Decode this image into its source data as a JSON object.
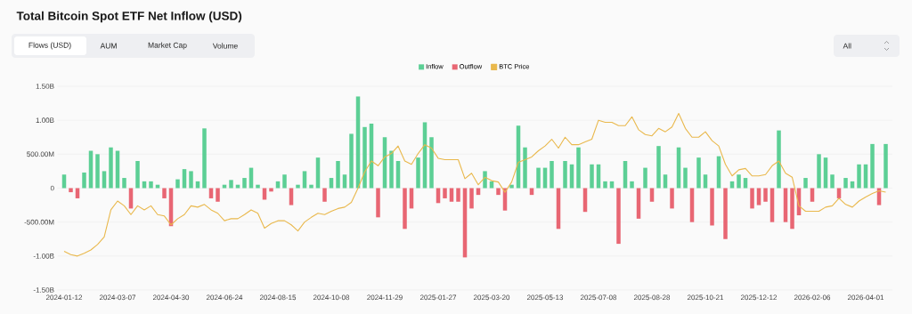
{
  "chart_data": {
    "type": "bar",
    "title": "Total Bitcoin Spot ETF Net Inflow (USD)",
    "annotations": [
      "Flows (USD)",
      "AUM",
      "Market Cap",
      "Volume",
      "All"
    ],
    "categories": [
      "2024-01-12",
      null,
      null,
      null,
      null,
      null,
      null,
      null,
      "2024-03-07",
      null,
      null,
      null,
      null,
      null,
      null,
      null,
      "2024-04-30",
      null,
      null,
      null,
      null,
      null,
      null,
      null,
      "2024-06-24",
      null,
      null,
      null,
      null,
      null,
      null,
      null,
      "2024-08-15",
      null,
      null,
      null,
      null,
      null,
      null,
      null,
      "2024-10-08",
      null,
      null,
      null,
      null,
      null,
      null,
      null,
      "2024-11-29",
      null,
      null,
      null,
      null,
      null,
      null,
      null,
      "2025-01-27",
      null,
      null,
      null,
      null,
      null,
      null,
      null,
      "2025-03-20",
      null,
      null,
      null,
      null,
      null,
      null,
      null,
      "2025-05-13",
      null,
      null,
      null,
      null,
      null,
      null,
      null,
      "2025-07-08",
      null,
      null,
      null,
      null,
      null,
      null,
      null,
      "2025-08-28",
      null,
      null,
      null,
      null,
      null,
      null,
      null,
      "2025-10-21",
      null,
      null,
      null,
      null,
      null,
      null,
      null,
      "2025-12-12",
      null,
      null,
      null,
      null,
      null,
      null,
      null,
      "2026-02-06",
      null,
      null,
      null,
      null,
      null,
      null,
      null,
      "2026-04-01",
      null,
      null,
      null
    ],
    "series": [
      {
        "name": "Inflow",
        "color": "#5ccf95",
        "values": [
          200000000.0,
          null,
          null,
          230000000.0,
          550000000.0,
          500000000.0,
          250000000.0,
          600000000.0,
          550000000.0,
          150000000.0,
          null,
          400000000.0,
          100000000.0,
          100000000.0,
          50000000.0,
          null,
          null,
          130000000.0,
          280000000.0,
          250000000.0,
          100000000.0,
          880000000.0,
          null,
          null,
          50000000.0,
          120000000.0,
          50000000.0,
          150000000.0,
          300000000.0,
          50000000.0,
          null,
          null,
          100000000.0,
          200000000.0,
          null,
          50000000.0,
          250000000.0,
          50000000.0,
          450000000.0,
          null,
          150000000.0,
          400000000.0,
          200000000.0,
          800000000.0,
          1350000000.0,
          900000000.0,
          950000000.0,
          null,
          750000000.0,
          550000000.0,
          400000000.0,
          null,
          null,
          450000000.0,
          970000000.0,
          750000000.0,
          null,
          null,
          null,
          null,
          null,
          null,
          null,
          250000000.0,
          100000000.0,
          null,
          null,
          50000000.0,
          920000000.0,
          600000000.0,
          null,
          300000000.0,
          300000000.0,
          400000000.0,
          null,
          400000000.0,
          350000000.0,
          600000000.0,
          null,
          350000000.0,
          350000000.0,
          100000000.0,
          100000000.0,
          null,
          400000000.0,
          100000000.0,
          null,
          300000000.0,
          null,
          620000000.0,
          200000000.0,
          null,
          600000000.0,
          300000000.0,
          null,
          450000000.0,
          200000000.0,
          null,
          470000000.0,
          null,
          100000000.0,
          200000000.0,
          150000000.0,
          null,
          null,
          null,
          null,
          850000000.0,
          null,
          null,
          null,
          150000000.0,
          null,
          500000000.0,
          450000000.0,
          200000000.0,
          null,
          150000000.0,
          100000000.0,
          350000000.0,
          350000000.0,
          650000000.0,
          null,
          650000000.0
        ]
      },
      {
        "name": "Outflow",
        "color": "#e86673",
        "values": [
          null,
          -60000000.0,
          -150000000.0,
          null,
          null,
          null,
          null,
          null,
          null,
          null,
          -300000000.0,
          null,
          null,
          null,
          null,
          -150000000.0,
          -560000000.0,
          null,
          null,
          null,
          null,
          null,
          -150000000.0,
          -200000000.0,
          null,
          null,
          null,
          null,
          null,
          null,
          -170000000.0,
          -50000000.0,
          null,
          null,
          -250000000.0,
          null,
          null,
          null,
          null,
          -200000000.0,
          null,
          null,
          null,
          null,
          null,
          null,
          null,
          -430000000.0,
          null,
          null,
          null,
          -600000000.0,
          -300000000.0,
          null,
          null,
          null,
          -220000000.0,
          -150000000.0,
          -200000000.0,
          -200000000.0,
          -1020000000.0,
          -300000000.0,
          -100000000.0,
          null,
          null,
          -100000000.0,
          -330000000.0,
          null,
          null,
          null,
          -100000000.0,
          null,
          null,
          null,
          -600000000.0,
          null,
          null,
          null,
          -350000000.0,
          null,
          null,
          null,
          null,
          -820000000.0,
          null,
          null,
          -450000000.0,
          null,
          -200000000.0,
          null,
          null,
          -300000000.0,
          null,
          null,
          -500000000.0,
          null,
          null,
          -550000000.0,
          null,
          -750000000.0,
          null,
          null,
          null,
          -300000000.0,
          -250000000.0,
          -200000000.0,
          -500000000.0,
          null,
          -500000000.0,
          -600000000.0,
          -400000000.0,
          null,
          -200000000.0,
          null,
          null,
          null,
          -150000000.0,
          null,
          null,
          null,
          null,
          null,
          -250000000.0,
          null
        ]
      },
      {
        "name": "BTC Price",
        "type": "line",
        "color": "#e9b84c",
        "values": [
          -930000000.0,
          -980000000.0,
          -1000000000.0,
          -960000000.0,
          -910000000.0,
          -830000000.0,
          -720000000.0,
          -320000000.0,
          -190000000.0,
          -260000000.0,
          -390000000.0,
          -260000000.0,
          -320000000.0,
          -260000000.0,
          -390000000.0,
          -410000000.0,
          -540000000.0,
          -450000000.0,
          -390000000.0,
          -260000000.0,
          -280000000.0,
          -240000000.0,
          -320000000.0,
          -370000000.0,
          -480000000.0,
          -450000000.0,
          -450000000.0,
          -390000000.0,
          -320000000.0,
          -370000000.0,
          -590000000.0,
          -520000000.0,
          -480000000.0,
          -480000000.0,
          -540000000.0,
          -630000000.0,
          -500000000.0,
          -430000000.0,
          -370000000.0,
          -390000000.0,
          -340000000.0,
          -300000000.0,
          -280000000.0,
          -210000000.0,
          0,
          240000000.0,
          400000000.0,
          330000000.0,
          460000000.0,
          510000000.0,
          620000000.0,
          400000000.0,
          350000000.0,
          510000000.0,
          640000000.0,
          590000000.0,
          440000000.0,
          420000000.0,
          420000000.0,
          420000000.0,
          140000000.0,
          220000000.0,
          50000000.0,
          160000000.0,
          110000000.0,
          90000000.0,
          -60000000.0,
          90000000.0,
          380000000.0,
          420000000.0,
          460000000.0,
          550000000.0,
          620000000.0,
          720000000.0,
          590000000.0,
          750000000.0,
          640000000.0,
          640000000.0,
          680000000.0,
          720000000.0,
          1000000000.0,
          970000000.0,
          970000000.0,
          920000000.0,
          920000000.0,
          1050000000.0,
          860000000.0,
          790000000.0,
          770000000.0,
          880000000.0,
          830000000.0,
          900000000.0,
          1100000000.0,
          880000000.0,
          750000000.0,
          750000000.0,
          830000000.0,
          700000000.0,
          620000000.0,
          350000000.0,
          180000000.0,
          270000000.0,
          290000000.0,
          180000000.0,
          180000000.0,
          200000000.0,
          330000000.0,
          400000000.0,
          220000000.0,
          160000000.0,
          -260000000.0,
          -340000000.0,
          -340000000.0,
          -340000000.0,
          -280000000.0,
          -260000000.0,
          -150000000.0,
          -240000000.0,
          -280000000.0,
          -190000000.0,
          -130000000.0,
          -80000000.0,
          -40000000.0,
          -60000000.0
        ]
      }
    ],
    "ylim": [
      -1500000000,
      1500000000
    ],
    "yticks": [
      {
        "value": -1500000000,
        "label": "-1.50B"
      },
      {
        "value": -1000000000,
        "label": "-1.00B"
      },
      {
        "value": -500000000,
        "label": "-500.00M"
      },
      0,
      {
        "value": 500000000,
        "label": "500.00M"
      },
      {
        "value": 1000000000,
        "label": "1.00B"
      },
      {
        "value": 1500000000,
        "label": "1.50B"
      }
    ],
    "grid": "y",
    "legend": "top"
  }
}
